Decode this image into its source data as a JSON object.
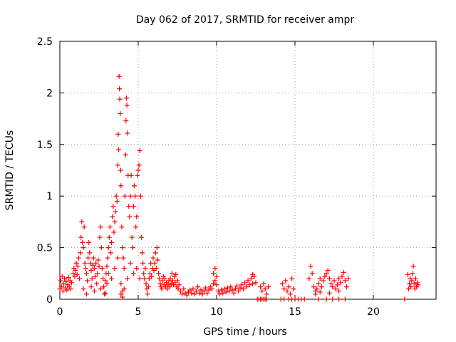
{
  "chart_data": {
    "type": "scatter",
    "title": "Day 062 of 2017, SRMTID for receiver ampr",
    "xlabel": "GPS time / hours",
    "ylabel": "SRMTID / TECUs",
    "xlim": [
      0,
      24
    ],
    "ylim": [
      0,
      2.5
    ],
    "x_ticks": [
      0,
      5,
      10,
      15,
      20
    ],
    "x_tick_labels": [
      "0",
      "5",
      "10",
      "15",
      "20"
    ],
    "y_ticks": [
      0,
      0.5,
      1,
      1.5,
      2,
      2.5
    ],
    "y_tick_labels": [
      "0",
      "0.5",
      "1",
      "1.5",
      "2",
      "2.5"
    ],
    "grid": true,
    "legend": "none",
    "marker": "plus",
    "color": "#ff0000",
    "series": [
      {
        "points": [
          [
            0.0,
            0.1
          ],
          [
            0.05,
            0.18
          ],
          [
            0.1,
            0.12
          ],
          [
            0.15,
            0.22
          ],
          [
            0.2,
            0.08
          ],
          [
            0.25,
            0.15
          ],
          [
            0.3,
            0.2
          ],
          [
            0.35,
            0.11
          ],
          [
            0.4,
            0.17
          ],
          [
            0.45,
            0.09
          ],
          [
            0.5,
            0.14
          ],
          [
            0.55,
            0.21
          ],
          [
            0.6,
            0.12
          ],
          [
            0.65,
            0.18
          ],
          [
            0.7,
            0.1
          ],
          [
            0.75,
            0.16
          ],
          [
            0.85,
            0.25
          ],
          [
            0.9,
            0.3
          ],
          [
            0.95,
            0.22
          ],
          [
            1.0,
            0.28
          ],
          [
            1.05,
            0.35
          ],
          [
            1.1,
            0.24
          ],
          [
            1.15,
            0.32
          ],
          [
            1.2,
            0.4
          ],
          [
            1.25,
            0.2
          ],
          [
            1.3,
            0.45
          ],
          [
            1.35,
            0.6
          ],
          [
            1.4,
            0.75
          ],
          [
            1.45,
            0.55
          ],
          [
            1.5,
            0.5
          ],
          [
            1.55,
            0.7
          ],
          [
            1.6,
            0.35
          ],
          [
            1.65,
            0.3
          ],
          [
            1.7,
            0.25
          ],
          [
            1.75,
            0.18
          ],
          [
            1.8,
            0.4
          ],
          [
            1.85,
            0.55
          ],
          [
            1.9,
            0.45
          ],
          [
            1.95,
            0.35
          ],
          [
            2.0,
            0.28
          ],
          [
            2.05,
            0.2
          ],
          [
            2.1,
            0.33
          ],
          [
            2.15,
            0.4
          ],
          [
            2.2,
            0.3
          ],
          [
            2.25,
            0.22
          ],
          [
            2.3,
            0.35
          ],
          [
            2.35,
            0.15
          ],
          [
            2.4,
            0.25
          ],
          [
            2.45,
            0.38
          ],
          [
            2.5,
            0.32
          ],
          [
            2.55,
            0.6
          ],
          [
            2.6,
            0.7
          ],
          [
            2.65,
            0.5
          ],
          [
            2.7,
            0.3
          ],
          [
            2.75,
            0.2
          ],
          [
            2.8,
            0.12
          ],
          [
            2.85,
            0.05
          ],
          [
            2.9,
            0.18
          ],
          [
            2.95,
            0.25
          ],
          [
            3.0,
            0.32
          ],
          [
            1.5,
            0.1
          ],
          [
            1.7,
            0.05
          ],
          [
            2.0,
            0.12
          ],
          [
            2.2,
            0.08
          ],
          [
            2.6,
            0.1
          ],
          [
            2.9,
            0.06
          ],
          [
            3.0,
            0.15
          ],
          [
            3.05,
            0.4
          ],
          [
            3.1,
            0.5
          ],
          [
            3.15,
            0.6
          ],
          [
            3.2,
            0.7
          ],
          [
            3.25,
            0.45
          ],
          [
            3.3,
            0.55
          ],
          [
            3.35,
            0.8
          ],
          [
            3.4,
            0.9
          ],
          [
            3.45,
            0.65
          ],
          [
            3.5,
            0.75
          ],
          [
            3.55,
            0.85
          ],
          [
            3.6,
            1.0
          ],
          [
            3.65,
            0.95
          ],
          [
            3.7,
            1.3
          ],
          [
            3.72,
            1.6
          ],
          [
            3.75,
            1.45
          ],
          [
            3.78,
            2.16
          ],
          [
            3.8,
            2.04
          ],
          [
            3.82,
            1.94
          ],
          [
            3.85,
            1.8
          ],
          [
            3.88,
            1.25
          ],
          [
            3.9,
            1.1
          ],
          [
            3.95,
            0.7
          ],
          [
            4.0,
            0.5
          ],
          [
            4.05,
            0.4
          ],
          [
            4.1,
            0.3
          ],
          [
            4.15,
            1.0
          ],
          [
            4.2,
            1.4
          ],
          [
            4.22,
            1.73
          ],
          [
            4.25,
            1.95
          ],
          [
            4.28,
            1.88
          ],
          [
            4.3,
            1.61
          ],
          [
            4.35,
            1.2
          ],
          [
            4.4,
            0.9
          ],
          [
            4.45,
            0.8
          ],
          [
            4.5,
            1.0
          ],
          [
            4.55,
            1.2
          ],
          [
            4.6,
            0.6
          ],
          [
            4.65,
            0.5
          ],
          [
            4.7,
            0.9
          ],
          [
            4.75,
            1.1
          ],
          [
            4.8,
            1.0
          ],
          [
            4.85,
            0.7
          ],
          [
            4.9,
            0.8
          ],
          [
            4.95,
            1.2
          ],
          [
            5.0,
            1.25
          ],
          [
            5.05,
            1.3
          ],
          [
            5.1,
            1.44
          ],
          [
            5.15,
            1.0
          ],
          [
            5.2,
            0.6
          ],
          [
            5.25,
            0.45
          ],
          [
            5.3,
            0.35
          ],
          [
            5.35,
            0.25
          ],
          [
            5.4,
            0.2
          ],
          [
            3.1,
            0.25
          ],
          [
            3.3,
            0.2
          ],
          [
            3.5,
            0.3
          ],
          [
            3.7,
            0.4
          ],
          [
            3.9,
            0.15
          ],
          [
            4.1,
            0.1
          ],
          [
            4.3,
            0.2
          ],
          [
            4.5,
            0.35
          ],
          [
            4.7,
            0.25
          ],
          [
            4.9,
            0.3
          ],
          [
            5.1,
            0.2
          ],
          [
            3.9,
            0.05
          ],
          [
            4.0,
            0.08
          ],
          [
            4.0,
            0.02
          ],
          [
            5.45,
            0.3
          ],
          [
            5.5,
            0.15
          ],
          [
            5.55,
            0.1
          ],
          [
            5.6,
            0.05
          ],
          [
            5.65,
            0.12
          ],
          [
            5.7,
            0.2
          ],
          [
            5.75,
            0.25
          ],
          [
            5.8,
            0.35
          ],
          [
            5.85,
            0.22
          ],
          [
            5.9,
            0.3
          ],
          [
            5.95,
            0.4
          ],
          [
            6.0,
            0.28
          ],
          [
            6.05,
            0.35
          ],
          [
            6.1,
            0.45
          ],
          [
            6.15,
            0.3
          ],
          [
            6.2,
            0.5
          ],
          [
            6.25,
            0.38
          ],
          [
            6.3,
            0.25
          ],
          [
            6.35,
            0.2
          ],
          [
            6.4,
            0.15
          ],
          [
            6.45,
            0.12
          ],
          [
            6.5,
            0.1
          ],
          [
            6.55,
            0.18
          ],
          [
            6.6,
            0.22
          ],
          [
            6.65,
            0.14
          ],
          [
            6.7,
            0.2
          ],
          [
            6.75,
            0.12
          ],
          [
            6.8,
            0.16
          ],
          [
            6.85,
            0.1
          ],
          [
            6.9,
            0.14
          ],
          [
            6.95,
            0.18
          ],
          [
            7.0,
            0.12
          ],
          [
            7.05,
            0.2
          ],
          [
            7.1,
            0.15
          ],
          [
            7.15,
            0.25
          ],
          [
            7.2,
            0.18
          ],
          [
            7.25,
            0.14
          ],
          [
            7.3,
            0.22
          ],
          [
            7.35,
            0.16
          ],
          [
            7.4,
            0.24
          ],
          [
            7.45,
            0.12
          ],
          [
            7.5,
            0.18
          ],
          [
            7.55,
            0.1
          ],
          [
            7.6,
            0.14
          ],
          [
            7.7,
            0.08
          ],
          [
            7.8,
            0.05
          ],
          [
            7.9,
            0.1
          ],
          [
            8.0,
            0.06
          ],
          [
            8.1,
            0.04
          ],
          [
            8.2,
            0.07
          ],
          [
            8.3,
            0.09
          ],
          [
            8.4,
            0.06
          ],
          [
            8.5,
            0.1
          ],
          [
            8.6,
            0.05
          ],
          [
            8.7,
            0.08
          ],
          [
            8.8,
            0.12
          ],
          [
            8.9,
            0.06
          ],
          [
            9.0,
            0.09
          ],
          [
            9.1,
            0.05
          ],
          [
            9.2,
            0.08
          ],
          [
            9.3,
            0.11
          ],
          [
            9.4,
            0.06
          ],
          [
            9.5,
            0.09
          ],
          [
            9.6,
            0.12
          ],
          [
            9.7,
            0.1
          ],
          [
            9.8,
            0.15
          ],
          [
            9.9,
            0.18
          ],
          [
            10.0,
            0.14
          ],
          [
            10.1,
            0.08
          ],
          [
            10.2,
            0.05
          ],
          [
            10.3,
            0.09
          ],
          [
            10.4,
            0.06
          ],
          [
            10.5,
            0.1
          ],
          [
            10.6,
            0.07
          ],
          [
            10.7,
            0.11
          ],
          [
            10.8,
            0.08
          ],
          [
            10.9,
            0.12
          ],
          [
            11.0,
            0.09
          ],
          [
            11.1,
            0.06
          ],
          [
            11.2,
            0.1
          ],
          [
            11.3,
            0.13
          ],
          [
            11.4,
            0.08
          ],
          [
            11.5,
            0.11
          ],
          [
            11.6,
            0.14
          ],
          [
            11.7,
            0.1
          ],
          [
            11.8,
            0.16
          ],
          [
            11.9,
            0.12
          ],
          [
            12.0,
            0.18
          ],
          [
            12.1,
            0.14
          ],
          [
            12.2,
            0.2
          ],
          [
            12.3,
            0.15
          ],
          [
            12.4,
            0.22
          ],
          [
            12.5,
            0.16
          ],
          [
            9.8,
            0.25
          ],
          [
            9.9,
            0.3
          ],
          [
            10.0,
            0.22
          ],
          [
            12.3,
            0.24
          ],
          [
            12.8,
            0.12
          ],
          [
            12.9,
            0.08
          ],
          [
            13.0,
            0.15
          ],
          [
            13.1,
            0.1
          ],
          [
            13.2,
            0.05
          ],
          [
            13.3,
            0.12
          ],
          [
            14.2,
            0.15
          ],
          [
            14.3,
            0.1
          ],
          [
            14.4,
            0.18
          ],
          [
            14.5,
            0.08
          ],
          [
            14.6,
            0.12
          ],
          [
            14.7,
            0.05
          ],
          [
            14.8,
            0.2
          ],
          [
            14.9,
            0.1
          ],
          [
            15.9,
            0.2
          ],
          [
            16.0,
            0.32
          ],
          [
            16.1,
            0.25
          ],
          [
            16.2,
            0.12
          ],
          [
            16.3,
            0.08
          ],
          [
            16.4,
            0.1
          ],
          [
            16.5,
            0.15
          ],
          [
            16.6,
            0.2
          ],
          [
            16.7,
            0.12
          ],
          [
            16.8,
            0.18
          ],
          [
            16.9,
            0.22
          ],
          [
            17.0,
            0.25
          ],
          [
            17.1,
            0.28
          ],
          [
            17.2,
            0.2
          ],
          [
            17.3,
            0.15
          ],
          [
            17.4,
            0.12
          ],
          [
            17.5,
            0.18
          ],
          [
            17.6,
            0.1
          ],
          [
            17.7,
            0.14
          ],
          [
            17.8,
            0.2
          ],
          [
            17.9,
            0.16
          ],
          [
            18.0,
            0.22
          ],
          [
            18.1,
            0.26
          ],
          [
            18.2,
            0.18
          ],
          [
            18.3,
            0.12
          ],
          [
            18.4,
            0.2
          ],
          [
            16.3,
            0.05
          ],
          [
            16.6,
            0.07
          ],
          [
            17.2,
            0.06
          ],
          [
            17.8,
            0.08
          ],
          [
            22.2,
            0.24
          ],
          [
            22.25,
            0.1
          ],
          [
            22.3,
            0.15
          ],
          [
            22.35,
            0.2
          ],
          [
            22.4,
            0.12
          ],
          [
            22.45,
            0.18
          ],
          [
            22.5,
            0.25
          ],
          [
            22.55,
            0.32
          ],
          [
            22.6,
            0.15
          ],
          [
            22.65,
            0.1
          ],
          [
            22.7,
            0.2
          ],
          [
            22.75,
            0.12
          ],
          [
            22.8,
            0.16
          ],
          [
            22.85,
            0.14
          ],
          [
            12.6,
            0.0
          ],
          [
            12.7,
            0.0
          ],
          [
            12.8,
            0.0
          ],
          [
            12.9,
            0.0
          ],
          [
            13.0,
            0.0
          ],
          [
            13.1,
            0.0
          ],
          [
            13.2,
            0.0
          ],
          [
            14.1,
            0.0
          ],
          [
            14.3,
            0.0
          ],
          [
            14.6,
            0.0
          ],
          [
            14.8,
            0.0
          ],
          [
            15.0,
            0.0
          ],
          [
            15.2,
            0.0
          ],
          [
            15.4,
            0.0
          ],
          [
            15.6,
            0.0
          ],
          [
            16.5,
            0.0
          ],
          [
            17.0,
            0.0
          ],
          [
            17.4,
            0.0
          ],
          [
            17.8,
            0.0
          ],
          [
            18.2,
            0.0
          ],
          [
            22.0,
            0.0
          ]
        ]
      }
    ]
  }
}
